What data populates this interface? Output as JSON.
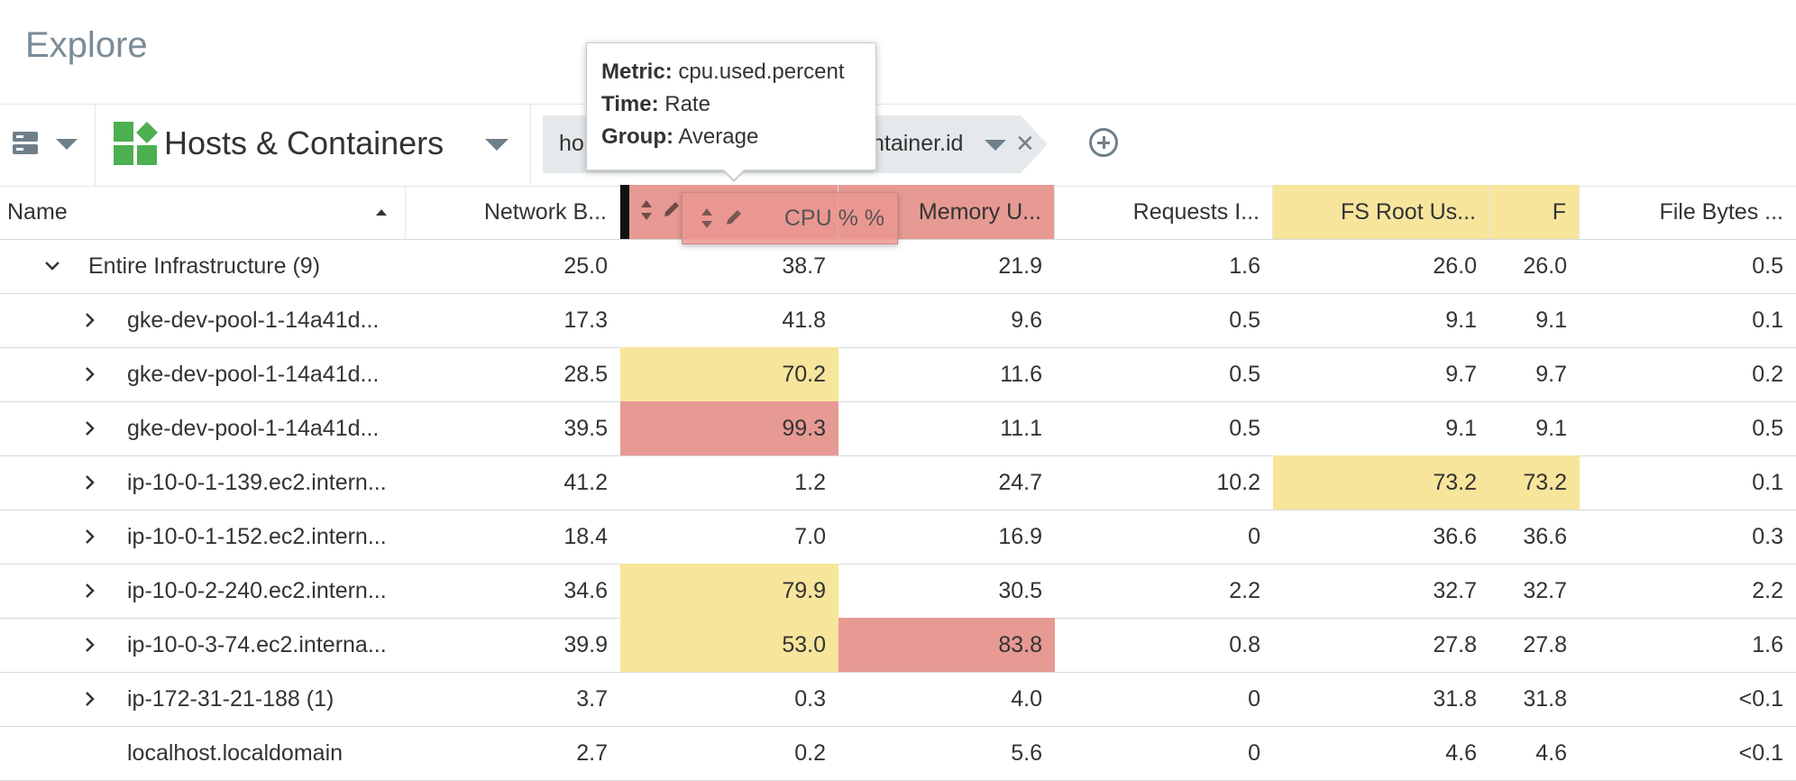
{
  "page": {
    "title": "Explore"
  },
  "toolbar": {
    "data_source": "Hosts & Containers",
    "group_chip_left": "ho",
    "group_chip_right": "ntainer.id"
  },
  "tooltip": {
    "metric_label": "Metric:",
    "metric_value": "cpu.used.percent",
    "time_label": "Time:",
    "time_value": "Rate",
    "group_label": "Group:",
    "group_value": "Average"
  },
  "drag_ghost": {
    "label": "CPU % %"
  },
  "table": {
    "headers": [
      "Name",
      "Network B...",
      "CPU % %",
      "Memory U...",
      "Requests I...",
      "FS Root Us...",
      "F",
      "File Bytes ..."
    ],
    "rows": [
      {
        "name": "Entire Infrastructure (9)",
        "values": [
          "25.0",
          "38.7",
          "21.9",
          "1.6",
          "26.0",
          "26.0",
          "0.5"
        ]
      },
      {
        "name": "gke-dev-pool-1-14a41d...",
        "values": [
          "17.3",
          "41.8",
          "9.6",
          "0.5",
          "9.1",
          "9.1",
          "0.1"
        ]
      },
      {
        "name": "gke-dev-pool-1-14a41d...",
        "values": [
          "28.5",
          "70.2",
          "11.6",
          "0.5",
          "9.7",
          "9.7",
          "0.2"
        ]
      },
      {
        "name": "gke-dev-pool-1-14a41d...",
        "values": [
          "39.5",
          "99.3",
          "11.1",
          "0.5",
          "9.1",
          "9.1",
          "0.5"
        ]
      },
      {
        "name": "ip-10-0-1-139.ec2.intern...",
        "values": [
          "41.2",
          "1.2",
          "24.7",
          "10.2",
          "73.2",
          "73.2",
          "0.1"
        ]
      },
      {
        "name": "ip-10-0-1-152.ec2.intern...",
        "values": [
          "18.4",
          "7.0",
          "16.9",
          "0",
          "36.6",
          "36.6",
          "0.3"
        ]
      },
      {
        "name": "ip-10-0-2-240.ec2.intern...",
        "values": [
          "34.6",
          "79.9",
          "30.5",
          "2.2",
          "32.7",
          "32.7",
          "2.2"
        ]
      },
      {
        "name": "ip-10-0-3-74.ec2.interna...",
        "values": [
          "39.9",
          "53.0",
          "83.8",
          "0.8",
          "27.8",
          "27.8",
          "1.6"
        ]
      },
      {
        "name": "ip-172-31-21-188 (1)",
        "values": [
          "3.7",
          "0.3",
          "4.0",
          "0",
          "31.8",
          "31.8",
          "<0.1"
        ]
      },
      {
        "name": "localhost.localdomain",
        "values": [
          "2.7",
          "0.2",
          "5.6",
          "0",
          "4.6",
          "4.6",
          "<0.1"
        ]
      }
    ]
  },
  "colors": {
    "warning": "#f7e59c",
    "critical": "#e69a93"
  }
}
